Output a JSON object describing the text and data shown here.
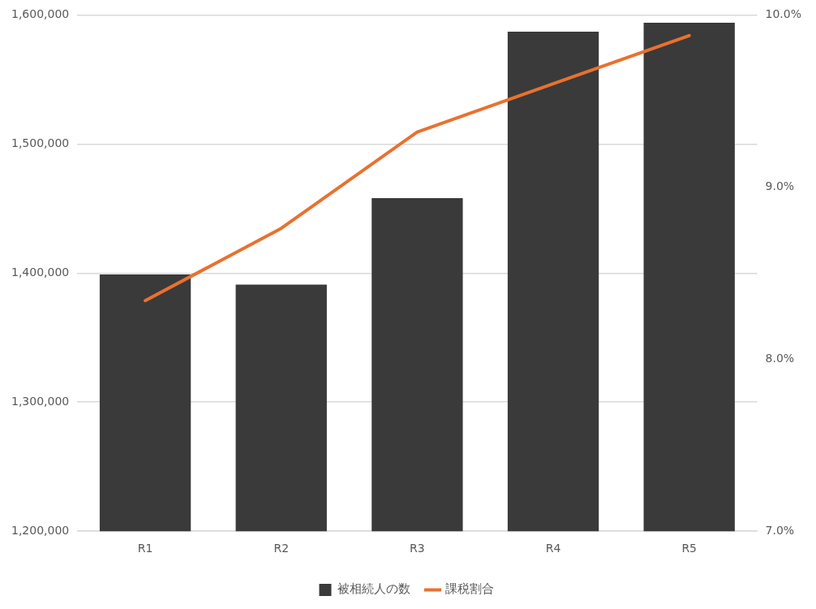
{
  "chart_data": {
    "type": "bar",
    "categories": [
      "R1",
      "R2",
      "R3",
      "R4",
      "R5"
    ],
    "series": [
      {
        "name": "被相続人の数",
        "color": "#3a3a3a",
        "values": [
          1399000,
          1391000,
          1458000,
          1587000,
          1594000
        ]
      },
      {
        "name": "課税割合",
        "type": "line",
        "axis": "y2",
        "color": "#e9712f",
        "values": [
          8.34,
          8.76,
          9.32,
          9.6,
          9.88
        ]
      }
    ],
    "ylim": [
      1200000,
      1600000
    ],
    "yticks": [
      {
        "value": 1200000,
        "label": "1,200,000"
      },
      {
        "value": 1300000,
        "label": "1,300,000"
      },
      {
        "value": 1400000,
        "label": "1,400,000"
      },
      {
        "value": 1500000,
        "label": "1,500,000"
      },
      {
        "value": 1600000,
        "label": "1,600,000"
      }
    ],
    "y2lim": [
      7,
      10
    ],
    "y2ticks": [
      {
        "value": 7,
        "label": "7.0%"
      },
      {
        "value": 8,
        "label": "8.0%"
      },
      {
        "value": 9,
        "label": "9.0%"
      },
      {
        "value": 10,
        "label": "10.0%"
      }
    ],
    "grid": "y",
    "legend": "bottom"
  }
}
